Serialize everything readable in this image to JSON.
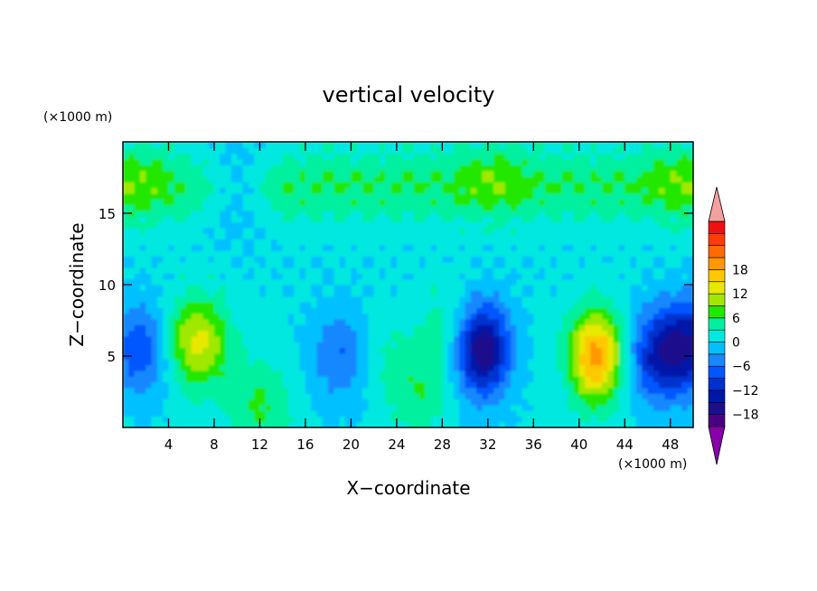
{
  "chart_data": {
    "type": "heatmap",
    "title": "vertical velocity",
    "xlabel": "X−coordinate",
    "ylabel": "Z−coordinate",
    "x_unit": "(×1000 m)",
    "y_unit": "(×1000 m)",
    "xlim": [
      0,
      50
    ],
    "ylim": [
      0,
      20
    ],
    "x_ticks": [
      "4",
      "8",
      "12",
      "16",
      "20",
      "24",
      "28",
      "32",
      "36",
      "40",
      "44",
      "48"
    ],
    "x_tick_values": [
      4,
      8,
      12,
      16,
      20,
      24,
      28,
      32,
      36,
      40,
      44,
      48
    ],
    "y_ticks": [
      "5",
      "10",
      "15"
    ],
    "y_tick_values": [
      5,
      10,
      15
    ],
    "colorbar": {
      "labels": [
        "18",
        "12",
        "6",
        "0",
        "−6",
        "−12",
        "−18"
      ],
      "label_values": [
        18,
        12,
        6,
        0,
        -6,
        -12,
        -18
      ],
      "levels": [
        -21,
        -18,
        -15,
        -12,
        -9,
        -6,
        -3,
        0,
        3,
        6,
        9,
        12,
        15,
        18,
        21
      ],
      "colors": [
        "#4b0082",
        "#1c0f8c",
        "#0018a8",
        "#0030d0",
        "#0056ff",
        "#1888ff",
        "#00c0ff",
        "#00e8e0",
        "#00f0a0",
        "#20e800",
        "#a0e800",
        "#e8e800",
        "#ffc800",
        "#ff9800",
        "#ff6a00",
        "#ff3c00",
        "#f01010"
      ],
      "extend_low_color": "#8800aa",
      "extend_high_color": "#f4a0a0"
    },
    "features": [
      {
        "x": 6.5,
        "z": 6.0,
        "value": 13
      },
      {
        "x": 1.5,
        "z": 5.5,
        "value": -9
      },
      {
        "x": 12.0,
        "z": 1.5,
        "value": 6
      },
      {
        "x": 19.5,
        "z": 5.0,
        "value": -8
      },
      {
        "x": 22.0,
        "z": 5.0,
        "value": 4
      },
      {
        "x": 26.0,
        "z": 2.5,
        "value": 5
      },
      {
        "x": 28.5,
        "z": 7.0,
        "value": 4
      },
      {
        "x": 31.5,
        "z": 5.5,
        "value": -19
      },
      {
        "x": 41.5,
        "z": 5.0,
        "value": 19
      },
      {
        "x": 47.0,
        "z": 5.0,
        "value": -12
      },
      {
        "x": 50.0,
        "z": 6.0,
        "value": -12
      },
      {
        "x": 1.0,
        "z": 17.0,
        "value": 3
      },
      {
        "x": 32.5,
        "z": 17.5,
        "value": 3
      },
      {
        "x": 49.0,
        "z": 17.0,
        "value": 3
      },
      {
        "x": 10.0,
        "z": 17.0,
        "value": -6
      }
    ]
  }
}
